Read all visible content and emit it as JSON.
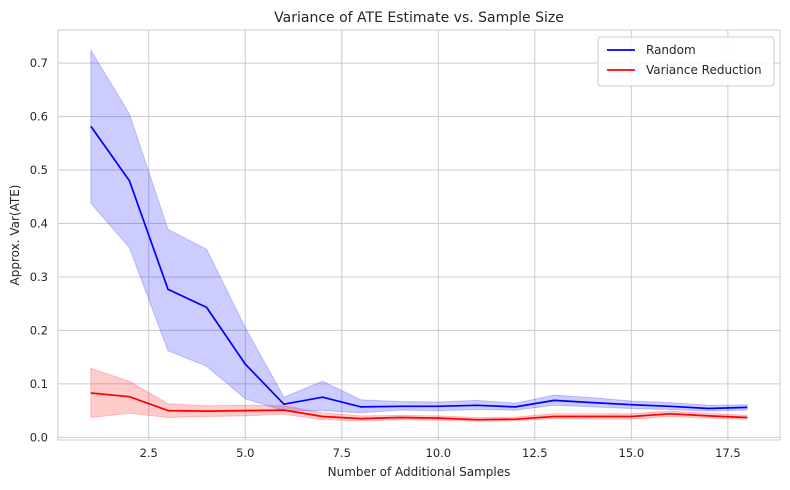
{
  "chart_data": {
    "type": "line",
    "title": "Variance of ATE Estimate vs. Sample Size",
    "xlabel": "Number of Additional Samples",
    "ylabel": "Approx. Var(ATE)",
    "xlim": [
      0.15,
      18.85
    ],
    "ylim": [
      -0.005,
      0.762
    ],
    "x_ticks": [
      2.5,
      5.0,
      7.5,
      10.0,
      12.5,
      15.0,
      17.5
    ],
    "x_tick_labels": [
      "2.5",
      "5.0",
      "7.5",
      "10.0",
      "12.5",
      "15.0",
      "17.5"
    ],
    "y_ticks": [
      0.0,
      0.1,
      0.2,
      0.3,
      0.4,
      0.5,
      0.6,
      0.7
    ],
    "y_tick_labels": [
      "0.0",
      "0.1",
      "0.2",
      "0.3",
      "0.4",
      "0.5",
      "0.6",
      "0.7"
    ],
    "grid": true,
    "legend_position": "top-right",
    "x": [
      1,
      2,
      3,
      4,
      5,
      6,
      7,
      8,
      9,
      10,
      11,
      12,
      13,
      14,
      15,
      16,
      17,
      18
    ],
    "series": [
      {
        "name": "Random",
        "color": "#0000ff",
        "band_color": "#0000ff",
        "values": [
          0.582,
          0.48,
          0.277,
          0.243,
          0.137,
          0.062,
          0.075,
          0.057,
          0.058,
          0.058,
          0.06,
          0.057,
          0.069,
          0.065,
          0.061,
          0.058,
          0.054,
          0.056
        ],
        "lower": [
          0.438,
          0.355,
          0.162,
          0.133,
          0.072,
          0.05,
          0.05,
          0.046,
          0.051,
          0.05,
          0.052,
          0.051,
          0.06,
          0.057,
          0.054,
          0.052,
          0.049,
          0.051
        ],
        "upper": [
          0.724,
          0.605,
          0.389,
          0.352,
          0.205,
          0.075,
          0.105,
          0.07,
          0.067,
          0.066,
          0.069,
          0.064,
          0.079,
          0.074,
          0.068,
          0.065,
          0.06,
          0.061
        ]
      },
      {
        "name": "Variance Reduction",
        "color": "#ff0000",
        "band_color": "#ff0000",
        "values": [
          0.083,
          0.076,
          0.05,
          0.049,
          0.05,
          0.051,
          0.039,
          0.035,
          0.037,
          0.036,
          0.033,
          0.034,
          0.039,
          0.039,
          0.039,
          0.044,
          0.04,
          0.037
        ],
        "lower": [
          0.037,
          0.045,
          0.037,
          0.039,
          0.04,
          0.043,
          0.033,
          0.031,
          0.033,
          0.032,
          0.03,
          0.031,
          0.035,
          0.034,
          0.034,
          0.039,
          0.036,
          0.034
        ],
        "upper": [
          0.129,
          0.105,
          0.063,
          0.059,
          0.06,
          0.059,
          0.046,
          0.04,
          0.041,
          0.04,
          0.037,
          0.038,
          0.044,
          0.044,
          0.044,
          0.049,
          0.045,
          0.041
        ]
      }
    ]
  }
}
